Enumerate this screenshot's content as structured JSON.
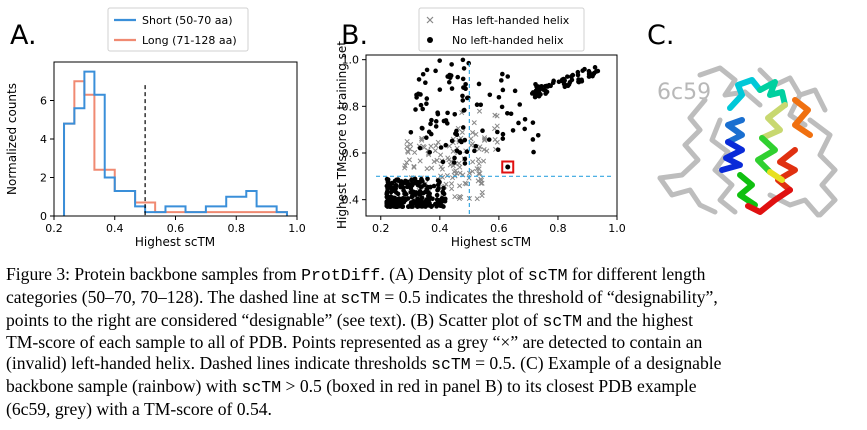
{
  "panels": {
    "a": {
      "letter": "A."
    },
    "b": {
      "letter": "B."
    },
    "c": {
      "letter": "C.",
      "pdb_id": "6c59"
    }
  },
  "colors": {
    "short": "#3a8fd9",
    "long": "#f08a72",
    "threshold_b": "#35a6e0",
    "box": "#e01010"
  },
  "chart_data": [
    {
      "type": "histogram",
      "xlabel": "Highest scTM",
      "ylabel": "Normalized counts",
      "xlim": [
        0.2,
        1.0
      ],
      "ylim": [
        0,
        8
      ],
      "xticks": [
        "0.2",
        "0.4",
        "0.6",
        "0.8",
        "1.0"
      ],
      "yticks": [
        "0",
        "2",
        "4",
        "6"
      ],
      "legend_position": "top-center",
      "bin_edges": [
        0.233,
        0.267,
        0.3,
        0.333,
        0.367,
        0.4,
        0.433,
        0.467,
        0.5,
        0.533,
        0.567,
        0.6,
        0.633,
        0.667,
        0.7,
        0.733,
        0.767,
        0.8,
        0.833,
        0.867,
        0.9,
        0.933,
        0.967
      ],
      "series": [
        {
          "name": "Short (50-70 aa)",
          "color": "#3a8fd9",
          "values": [
            4.8,
            5.6,
            7.5,
            6.3,
            2.0,
            1.3,
            1.3,
            0.5,
            0.2,
            0.2,
            0.5,
            0.5,
            0.2,
            0.2,
            0.5,
            0.5,
            1.0,
            1.0,
            1.3,
            0.5,
            0.5,
            0.2
          ]
        },
        {
          "name": "Long (71-128 aa)",
          "color": "#f08a72",
          "values": [
            4.8,
            7.0,
            6.3,
            2.4,
            2.4,
            1.3,
            1.3,
            0.7,
            0.7,
            0.2,
            0.2,
            0.2,
            0.2,
            0.2,
            0.2,
            0.2,
            0.2,
            0.2,
            0.2,
            0.2,
            0.2,
            0.2
          ]
        }
      ],
      "threshold_x": 0.5
    },
    {
      "type": "scatter",
      "xlabel": "Highest scTM",
      "ylabel": "Highest TMscore to training set",
      "xlim": [
        0.15,
        1.0
      ],
      "ylim": [
        0.33,
        1.02
      ],
      "xticks": [
        "0.2",
        "0.4",
        "0.6",
        "0.8",
        "1.0"
      ],
      "yticks": [
        "0.4",
        "0.6",
        "0.8",
        "1.0"
      ],
      "legend_position": "top",
      "series": [
        {
          "name": "Has left-handed helix",
          "marker": "x",
          "color": "#888888"
        },
        {
          "name": "No left-handed helix",
          "marker": "dot",
          "color": "#000000"
        }
      ],
      "threshold_x": 0.5,
      "threshold_y": 0.5,
      "highlighted_point": [
        0.63,
        0.54
      ]
    }
  ],
  "caption": {
    "l1": [
      {
        "t": "Figure 3: Protein backbone samples from "
      },
      {
        "t": "ProtDiff",
        "m": true
      },
      {
        "t": ". (A) Density plot of "
      },
      {
        "t": "scTM",
        "m": true
      },
      {
        "t": " for different length"
      }
    ],
    "l2": [
      {
        "t": "categories (50–70, 70–128). The dashed line at "
      },
      {
        "t": "scTM",
        "m": true
      },
      {
        "t": " = 0.5 indicates the threshold of “designability”,"
      }
    ],
    "l3": [
      {
        "t": "points to the right are considered “designable” (see text). (B) Scatter plot of "
      },
      {
        "t": "scTM",
        "m": true
      },
      {
        "t": " and the highest"
      }
    ],
    "l4": [
      {
        "t": "TM-score of each sample to all of PDB. Points represented as a grey “×” are detected to contain an"
      }
    ],
    "l5": [
      {
        "t": "(invalid) left-handed helix. Dashed lines indicate thresholds "
      },
      {
        "t": "scTM",
        "m": true
      },
      {
        "t": " = 0.5. (C) Example of a designable"
      }
    ],
    "l6": [
      {
        "t": "backbone sample (rainbow) with "
      },
      {
        "t": "scTM",
        "m": true
      },
      {
        "t": " > 0.5 (boxed in red in panel B) to its closest PDB example"
      }
    ],
    "l7": [
      {
        "t": "(6c59, grey) with a TM-score of 0.54."
      }
    ]
  }
}
